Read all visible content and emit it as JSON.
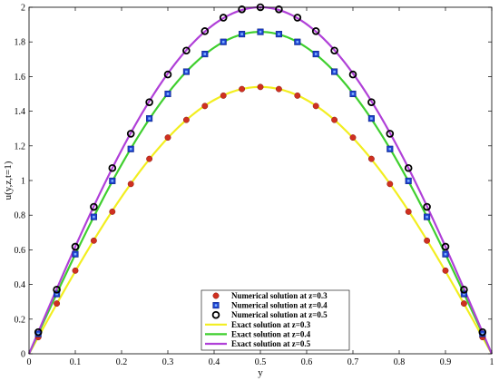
{
  "chart_data": {
    "type": "line",
    "title": "",
    "xlabel": "y",
    "ylabel": "u(y,z,t=1)",
    "xlim": [
      0,
      1
    ],
    "ylim": [
      0,
      2
    ],
    "xticks": [
      {
        "value": 0,
        "label": "0"
      },
      {
        "value": 0.1,
        "label": "0.1"
      },
      {
        "value": 0.2,
        "label": "0.2"
      },
      {
        "value": 0.3,
        "label": "0.3"
      },
      {
        "value": 0.4,
        "label": "0.4"
      },
      {
        "value": 0.5,
        "label": "0.5"
      },
      {
        "value": 0.6,
        "label": "0.6"
      },
      {
        "value": 0.7,
        "label": "0.7"
      },
      {
        "value": 0.8,
        "label": "0.8"
      },
      {
        "value": 0.9,
        "label": "0.9"
      },
      {
        "value": 1,
        "label": "1"
      }
    ],
    "yticks": [
      {
        "value": 0,
        "label": "0"
      },
      {
        "value": 0.2,
        "label": "0.2"
      },
      {
        "value": 0.4,
        "label": "0.4"
      },
      {
        "value": 0.6,
        "label": "0.6"
      },
      {
        "value": 0.8,
        "label": "0.8"
      },
      {
        "value": 1,
        "label": "1"
      },
      {
        "value": 1.2,
        "label": "1.2"
      },
      {
        "value": 1.4,
        "label": "1.4"
      },
      {
        "value": 1.6,
        "label": "1.6"
      },
      {
        "value": 1.8,
        "label": "1.8"
      },
      {
        "value": 2,
        "label": "2"
      }
    ],
    "grid": false,
    "legend_position": "bottom-center",
    "x": [
      0.02,
      0.06,
      0.1,
      0.14,
      0.18,
      0.22,
      0.26,
      0.3,
      0.34,
      0.38,
      0.42,
      0.46,
      0.5,
      0.54,
      0.58,
      0.62,
      0.66,
      0.7,
      0.74,
      0.78,
      0.82,
      0.86,
      0.9,
      0.94,
      0.98
    ],
    "series": [
      {
        "name": "Numerical solution at z=0.3",
        "kind": "marker",
        "marker": "circle",
        "color": "#d03020",
        "values": [
          0.096,
          0.29,
          0.48,
          0.653,
          0.82,
          0.98,
          1.125,
          1.248,
          1.35,
          1.43,
          1.49,
          1.528,
          1.54,
          1.528,
          1.49,
          1.43,
          1.35,
          1.248,
          1.125,
          0.98,
          0.82,
          0.653,
          0.48,
          0.29,
          0.096
        ]
      },
      {
        "name": "Numerical solution at z=0.4",
        "kind": "marker",
        "marker": "square",
        "color": "#1a3fcc",
        "values": [
          0.115,
          0.345,
          0.575,
          0.79,
          0.998,
          1.182,
          1.358,
          1.5,
          1.628,
          1.73,
          1.8,
          1.845,
          1.858,
          1.845,
          1.8,
          1.73,
          1.628,
          1.5,
          1.358,
          1.182,
          0.998,
          0.79,
          0.575,
          0.345,
          0.115
        ]
      },
      {
        "name": "Numerical solution at z=0.5",
        "kind": "marker",
        "marker": "ring",
        "color": "#000000",
        "values": [
          0.125,
          0.37,
          0.618,
          0.848,
          1.072,
          1.27,
          1.452,
          1.612,
          1.75,
          1.862,
          1.94,
          1.988,
          2.0,
          1.988,
          1.94,
          1.862,
          1.75,
          1.612,
          1.452,
          1.27,
          1.072,
          0.848,
          0.618,
          0.37,
          0.125
        ]
      },
      {
        "name": "Exact solution at z=0.3",
        "kind": "line",
        "color": "#f2ee20",
        "peak": 1.54
      },
      {
        "name": "Exact solution at z=0.4",
        "kind": "line",
        "color": "#3fcf2e",
        "peak": 1.858
      },
      {
        "name": "Exact solution at z=0.5",
        "kind": "line",
        "color": "#b040d8",
        "peak": 2.0
      }
    ]
  }
}
